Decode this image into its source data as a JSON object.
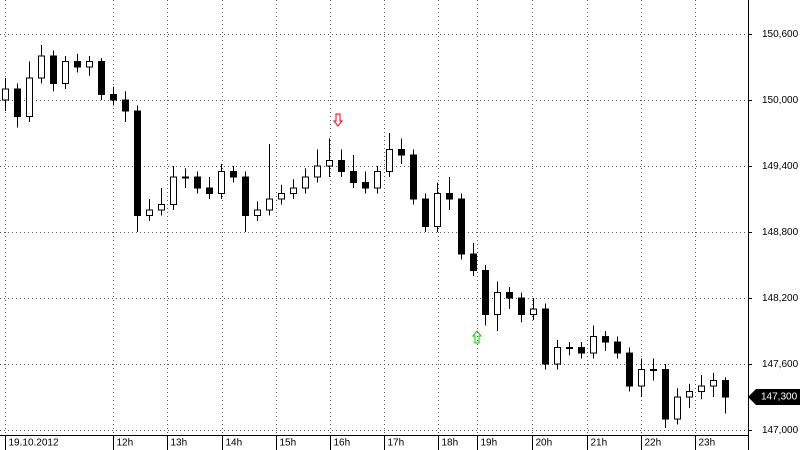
{
  "chart_data": {
    "type": "candlestick",
    "open": [
      150000,
      150100,
      149850,
      150200,
      150400,
      150150,
      150350,
      150300,
      150350,
      150050,
      150000,
      149900,
      148950,
      149000,
      149050,
      149300,
      149300,
      149200,
      149150,
      149350,
      149300,
      148950,
      149000,
      149100,
      149150,
      149200,
      149300,
      149400,
      149450,
      149350,
      149250,
      149200,
      149350,
      149550,
      149500,
      149100,
      148850,
      149150,
      149100,
      148600,
      148450,
      148050,
      148250,
      148200,
      148050,
      148100,
      147600,
      147750,
      147750,
      147700,
      147850,
      147800,
      147700,
      147400,
      147550,
      147550,
      147100,
      147300,
      147350,
      147400,
      147450
    ],
    "high": [
      150200,
      150150,
      150350,
      150500,
      150450,
      150400,
      150420,
      150400,
      150380,
      150120,
      150080,
      149950,
      149100,
      149200,
      149400,
      149380,
      149350,
      149300,
      149420,
      149400,
      149350,
      149080,
      149600,
      149230,
      149280,
      149380,
      149550,
      149650,
      149550,
      149500,
      149350,
      149400,
      149700,
      149650,
      149550,
      149150,
      149250,
      149300,
      149150,
      148700,
      148500,
      148350,
      148300,
      148250,
      148200,
      148150,
      147820,
      147800,
      147800,
      147950,
      147900,
      147850,
      147750,
      147650,
      147650,
      147600,
      147380,
      147420,
      147500,
      147520,
      147480
    ],
    "low": [
      149900,
      149750,
      149800,
      150150,
      150080,
      150100,
      150250,
      150220,
      150000,
      149950,
      149800,
      148800,
      148900,
      148950,
      149000,
      149200,
      149150,
      149100,
      149100,
      149250,
      148800,
      148900,
      148950,
      149050,
      149100,
      149150,
      149250,
      149300,
      149300,
      149200,
      149150,
      149150,
      149300,
      149420,
      149050,
      148800,
      148800,
      149000,
      148550,
      148400,
      147950,
      147900,
      148100,
      147980,
      148000,
      147550,
      147550,
      147680,
      147650,
      147650,
      147720,
      147650,
      147350,
      147300,
      147450,
      147020,
      147050,
      147200,
      147280,
      147300,
      147150
    ],
    "close": [
      150100,
      149850,
      150200,
      150400,
      150150,
      150350,
      150300,
      150350,
      150050,
      150000,
      149900,
      148950,
      149000,
      149050,
      149300,
      149300,
      149200,
      149150,
      149350,
      149300,
      148950,
      149000,
      149100,
      149150,
      149200,
      149300,
      149400,
      149450,
      149350,
      149250,
      149200,
      149350,
      149550,
      149500,
      149100,
      148850,
      149150,
      149100,
      148600,
      148450,
      148050,
      148250,
      148200,
      148050,
      148100,
      147600,
      147750,
      147750,
      147700,
      147850,
      147800,
      147700,
      147400,
      147550,
      147550,
      147100,
      147300,
      147350,
      147400,
      147450,
      147300
    ],
    "xlim": [
      -0.42,
      61.92
    ],
    "xticks": [
      {
        "value": 0,
        "label": "19.10.2012"
      },
      {
        "value": 9,
        "label": "12h"
      },
      {
        "value": 13.5,
        "label": "13h"
      },
      {
        "value": 18.1,
        "label": "14h"
      },
      {
        "value": 22.6,
        "label": "15h"
      },
      {
        "value": 27.1,
        "label": "16h"
      },
      {
        "value": 31.6,
        "label": "17h"
      },
      {
        "value": 36.1,
        "label": "18h"
      },
      {
        "value": 39.3,
        "label": "19h"
      },
      {
        "value": 43.9,
        "label": "20h"
      },
      {
        "value": 48.5,
        "label": "21h"
      },
      {
        "value": 53,
        "label": "22h"
      },
      {
        "value": 57.5,
        "label": "23h"
      }
    ],
    "ylim": [
      146955,
      150909
    ],
    "yticks": [
      {
        "value": 147000,
        "label": "147,000"
      },
      {
        "value": 147600,
        "label": "147,600"
      },
      {
        "value": 148200,
        "label": "148,200"
      },
      {
        "value": 148800,
        "label": "148,800"
      },
      {
        "value": 149400,
        "label": "149,400"
      },
      {
        "value": 150000,
        "label": "150,000"
      },
      {
        "value": 150600,
        "label": "150,600"
      }
    ],
    "last_price": {
      "value": 147300,
      "label": "147,300"
    },
    "grid": true
  }
}
